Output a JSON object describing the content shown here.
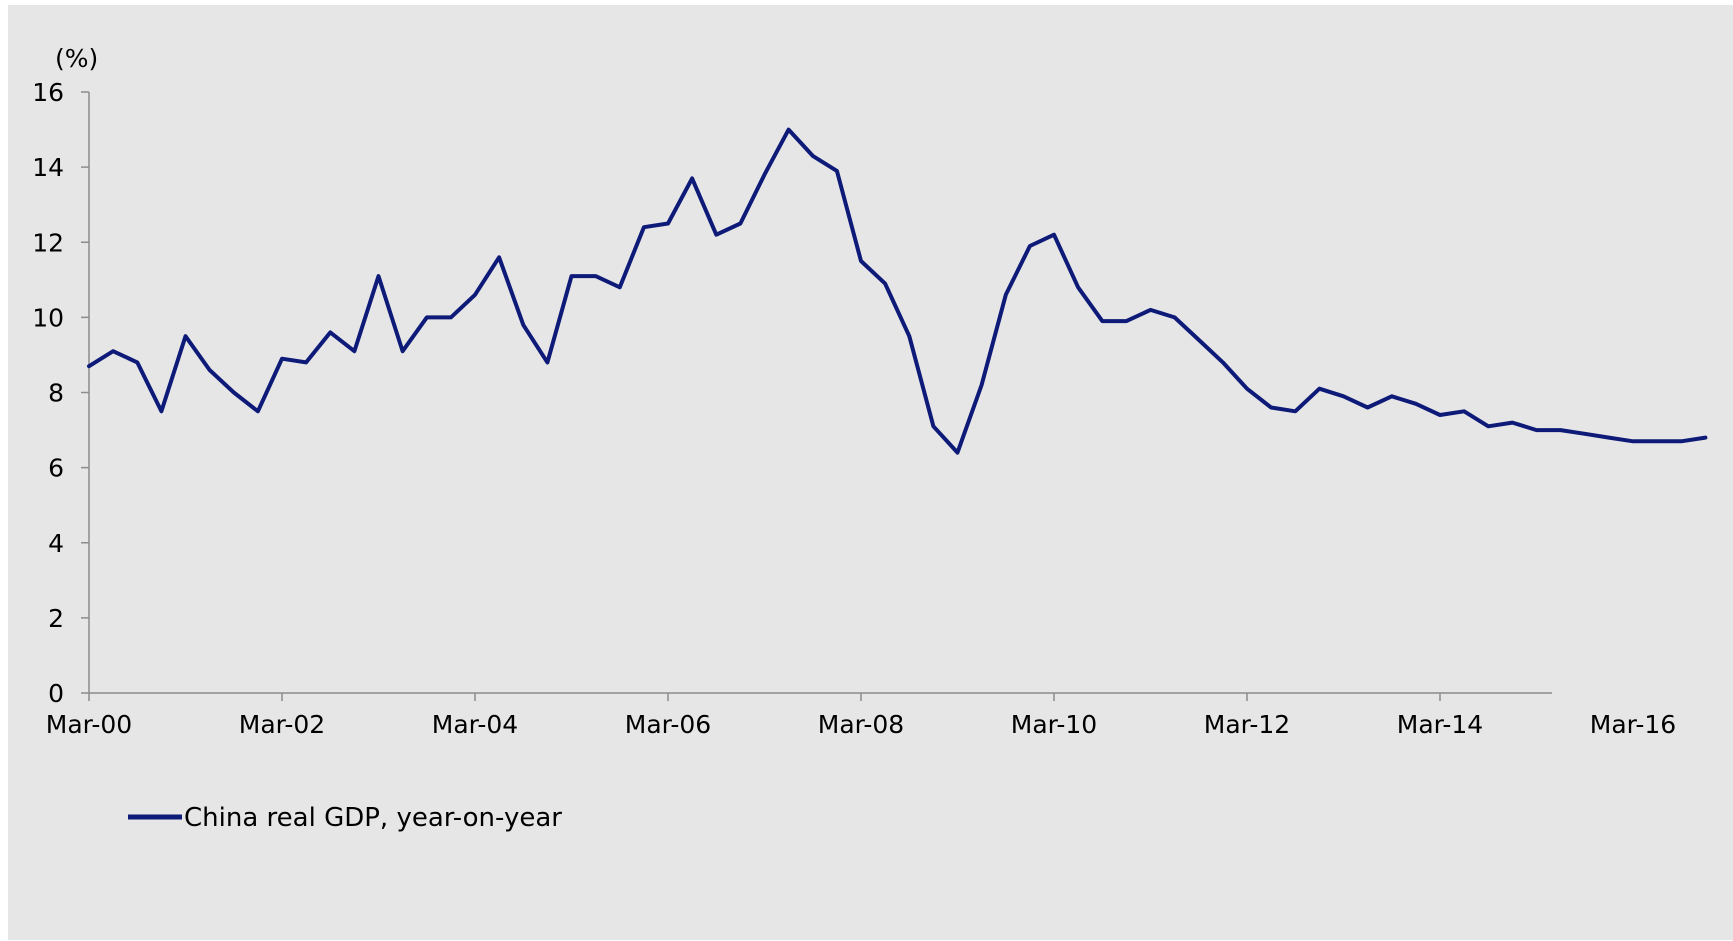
{
  "chart_data": {
    "type": "line",
    "title": "",
    "xlabel": "",
    "ylabel": "(%)",
    "ylim": [
      0,
      16
    ],
    "yticks": [
      "0",
      "2",
      "4",
      "6",
      "8",
      "10",
      "12",
      "14",
      "16"
    ],
    "xticks": [
      "Mar-00",
      "Mar-02",
      "Mar-04",
      "Mar-06",
      "Mar-08",
      "Mar-10",
      "Mar-12",
      "Mar-14",
      "Mar-16"
    ],
    "x_start": "Mar-00",
    "x_end": "Dec-16",
    "frequency": "quarterly",
    "grid": false,
    "legend_position": "bottom-left",
    "series": [
      {
        "name": "China real GDP, year-on-year",
        "color": "#0d1a78",
        "values": [
          8.7,
          9.1,
          8.8,
          7.5,
          9.5,
          8.6,
          8.0,
          7.5,
          8.9,
          8.8,
          9.6,
          9.1,
          11.1,
          9.1,
          10.0,
          10.0,
          10.6,
          11.6,
          9.8,
          8.8,
          11.1,
          11.1,
          10.8,
          12.4,
          12.5,
          13.7,
          12.2,
          12.5,
          13.8,
          15.0,
          14.3,
          13.9,
          11.5,
          10.9,
          9.5,
          7.1,
          6.4,
          8.2,
          10.6,
          11.9,
          12.2,
          10.8,
          9.9,
          9.9,
          10.2,
          10.0,
          9.4,
          8.8,
          8.1,
          7.6,
          7.5,
          8.1,
          7.9,
          7.6,
          7.9,
          7.7,
          7.4,
          7.5,
          7.1,
          7.2,
          7.0,
          7.0,
          6.9,
          6.8,
          6.7,
          6.7,
          6.7,
          6.8
        ]
      }
    ]
  }
}
